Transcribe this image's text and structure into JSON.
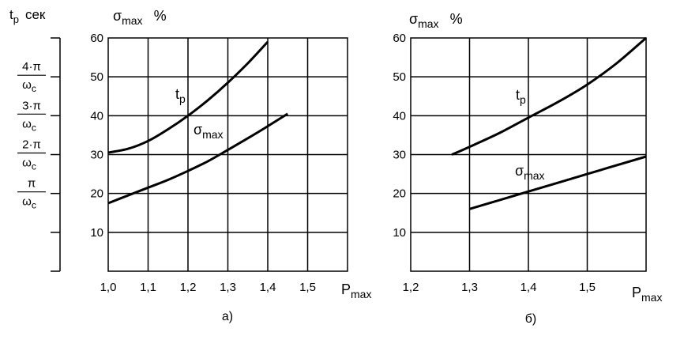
{
  "chart_data": [
    {
      "type": "line",
      "panel_label": "а)",
      "x_axis_label": {
        "main": "P",
        "sub": "max"
      },
      "y_axis_label": {
        "main": "σ",
        "sub": "max",
        "unit": "%"
      },
      "left_axis_label": {
        "main": "t",
        "sub": "p",
        "unit": "сек"
      },
      "x_ticks": [
        "1,0",
        "1,1",
        "1,2",
        "1,3",
        "1,4",
        "1,5"
      ],
      "x_tick_values": [
        1.0,
        1.1,
        1.2,
        1.3,
        1.4,
        1.5
      ],
      "y_ticks": [
        "10",
        "20",
        "30",
        "40",
        "50",
        "60"
      ],
      "y_tick_values": [
        10,
        20,
        30,
        40,
        50,
        60
      ],
      "xlim": [
        1.0,
        1.6
      ],
      "ylim": [
        0,
        60
      ],
      "grid": true,
      "left_axis_ticks": [
        {
          "num": "π",
          "den": "ω",
          "den_sub": "c",
          "at_y": 20
        },
        {
          "num": "2·π",
          "den": "ω",
          "den_sub": "c",
          "at_y": 30
        },
        {
          "num": "3·π",
          "den": "ω",
          "den_sub": "c",
          "at_y": 40
        },
        {
          "num": "4·π",
          "den": "ω",
          "den_sub": "c",
          "at_y": 50
        }
      ],
      "series": [
        {
          "name": "t_p",
          "label": {
            "main": "t",
            "sub": "p"
          },
          "x": [
            1.0,
            1.05,
            1.1,
            1.15,
            1.2,
            1.25,
            1.3,
            1.35,
            1.4
          ],
          "y": [
            30.5,
            31.5,
            33.5,
            36.5,
            40,
            44,
            48.5,
            53.5,
            59
          ]
        },
        {
          "name": "σ_max",
          "label": {
            "main": "σ",
            "sub": "max"
          },
          "x": [
            1.0,
            1.05,
            1.1,
            1.15,
            1.2,
            1.25,
            1.3,
            1.35,
            1.4,
            1.45
          ],
          "y": [
            17.5,
            19.5,
            21.5,
            23.5,
            25.8,
            28.3,
            31.2,
            34.2,
            37.3,
            40.5
          ]
        }
      ]
    },
    {
      "type": "line",
      "panel_label": "б)",
      "x_axis_label": {
        "main": "P",
        "sub": "max"
      },
      "y_axis_label": {
        "main": "σ",
        "sub": "max",
        "unit": "%"
      },
      "x_ticks": [
        "1,2",
        "1,3",
        "1,4",
        "1,5"
      ],
      "x_tick_values": [
        1.2,
        1.3,
        1.4,
        1.5
      ],
      "y_ticks": [
        "10",
        "20",
        "30",
        "40",
        "50",
        "60"
      ],
      "y_tick_values": [
        10,
        20,
        30,
        40,
        50,
        60
      ],
      "xlim": [
        1.2,
        1.6
      ],
      "ylim": [
        0,
        60
      ],
      "grid": true,
      "series": [
        {
          "name": "t_p",
          "label": {
            "main": "t",
            "sub": "p"
          },
          "x": [
            1.27,
            1.3,
            1.35,
            1.4,
            1.45,
            1.5,
            1.55,
            1.6
          ],
          "y": [
            30,
            32,
            35.5,
            39.5,
            43.5,
            48,
            53.5,
            60
          ]
        },
        {
          "name": "σ_max",
          "label": {
            "main": "σ",
            "sub": "max"
          },
          "x": [
            1.3,
            1.4,
            1.5,
            1.6
          ],
          "y": [
            16,
            20.5,
            25,
            29.5
          ]
        }
      ]
    }
  ]
}
